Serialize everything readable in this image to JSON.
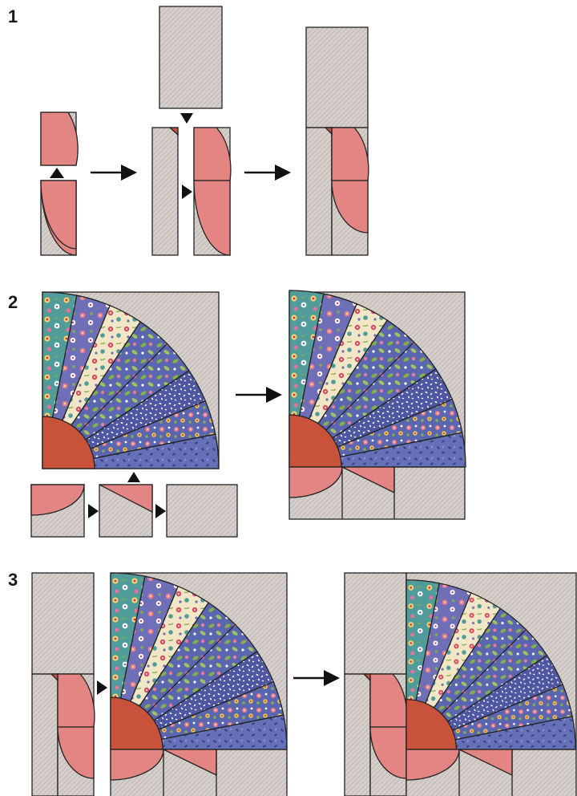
{
  "steps": [
    {
      "label": "1"
    },
    {
      "label": "2"
    },
    {
      "label": "3"
    }
  ],
  "colors": {
    "background_fabric": "#d6d0cc",
    "background_fabric_hatch": "#b7afaa",
    "pink": "#e38583",
    "rust": "#c9533a",
    "teal": "#4f9c9a",
    "violet": "#6e6fb7",
    "cream": "#f1e6c6",
    "navy": "#5b66b0",
    "magenta": "#c8366b",
    "leaf_green": "#86ad4b",
    "outline": "#222222"
  },
  "icons": [
    "arrow-right-icon",
    "triangle-pointer-icon"
  ]
}
